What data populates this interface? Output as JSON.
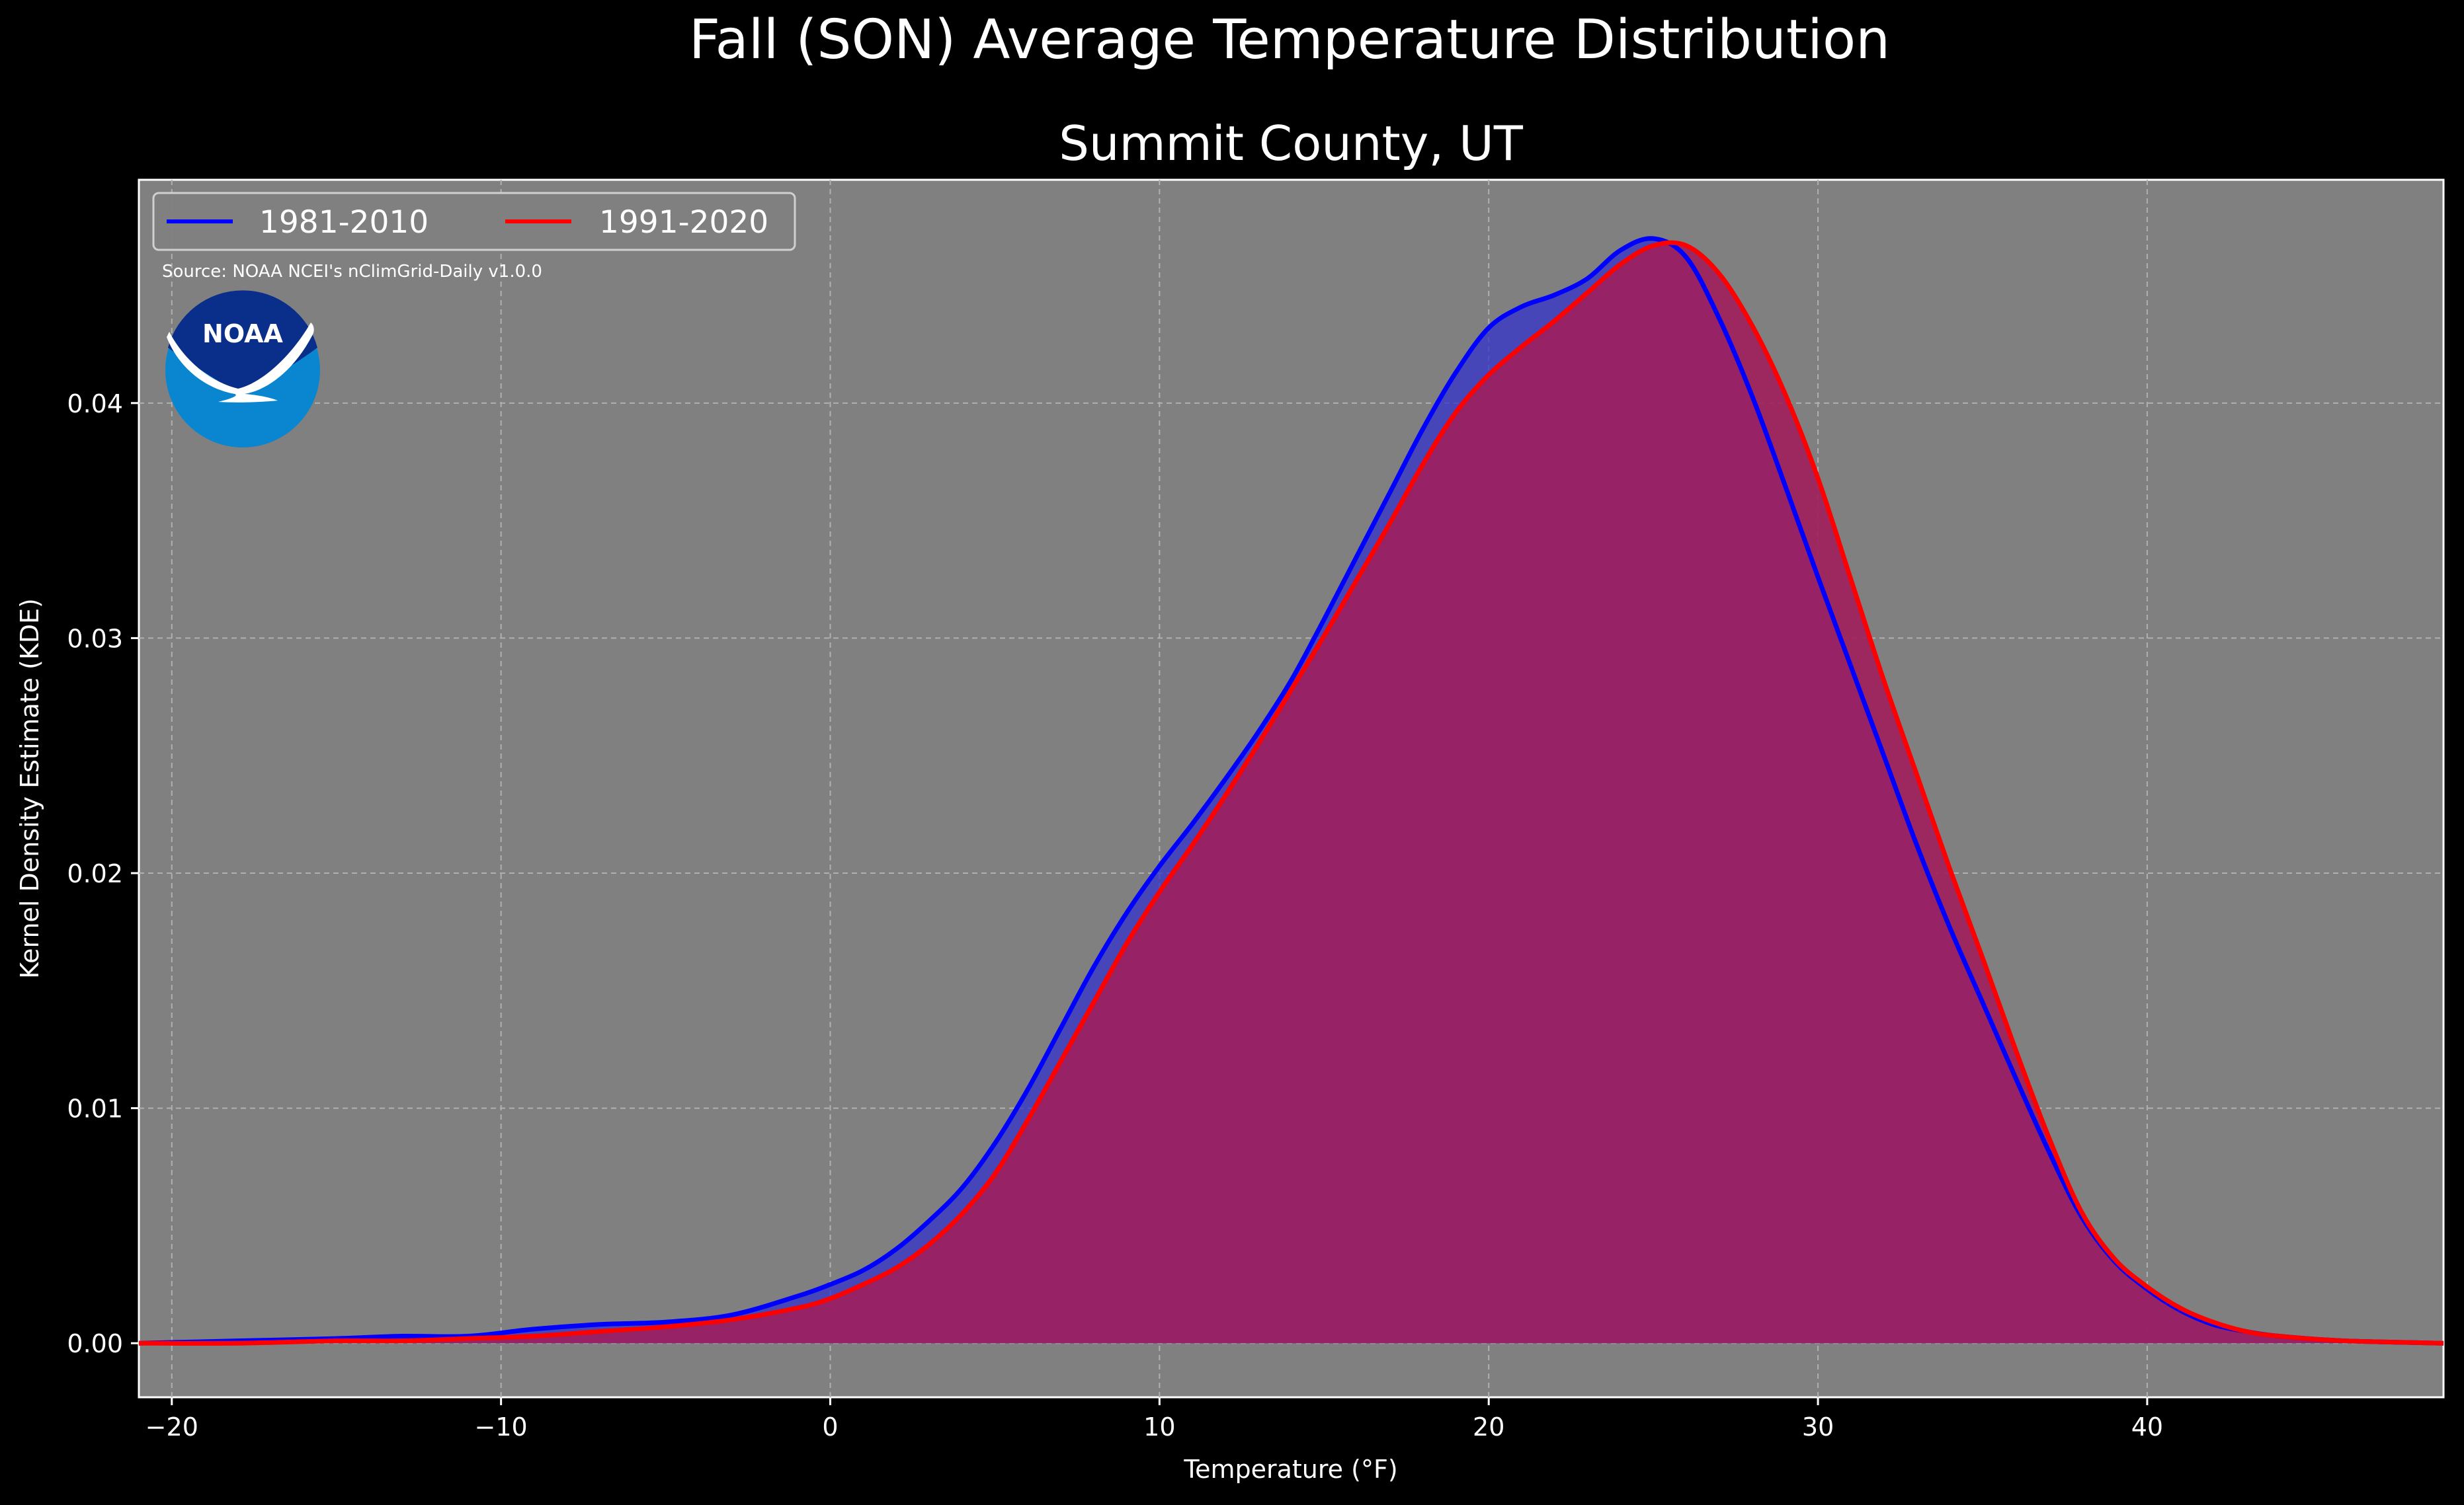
{
  "chart_data": {
    "type": "area",
    "title": "Fall (SON) Average Temperature Distribution",
    "subtitle": "Summit County, UT",
    "xlabel": "Temperature ($^\\circ$F)",
    "xlabel_display": "Temperature (°F)",
    "ylabel": "Kernel Density Estimate (KDE)",
    "xlim": [
      -21,
      49
    ],
    "ylim": [
      -0.0023,
      0.0495
    ],
    "x_ticks": [
      -20,
      -10,
      0,
      10,
      20,
      30,
      40
    ],
    "x_tick_labels": [
      "−20",
      "−10",
      "0",
      "10",
      "20",
      "30",
      "40"
    ],
    "y_ticks": [
      0,
      0.01,
      0.02,
      0.03,
      0.04
    ],
    "y_tick_labels": [
      "0.00",
      "0.01",
      "0.02",
      "0.03",
      "0.04"
    ],
    "grid": true,
    "legend_position": "top-left",
    "source": "Source: NOAA NCEI's nClimGrid-Daily v1.0.0",
    "logo_text": "NOAA",
    "colors": {
      "background": "#000000",
      "plot_background": "#808080",
      "series_1981": "#0000ff",
      "series_1991": "#ff0000",
      "fill_1981": "#3333cc",
      "fill_1991": "#a01e5c",
      "logo_dark": "#0a2f8a",
      "logo_light": "#0a86d0"
    },
    "series": [
      {
        "name": "1981-2010",
        "x": [
          -21,
          -18,
          -15,
          -13,
          -11,
          -9,
          -7,
          -5,
          -3,
          -1,
          0,
          1,
          2,
          3,
          4,
          5,
          6,
          7,
          8,
          9,
          10,
          11,
          12,
          13,
          14,
          15,
          16,
          17,
          18,
          19,
          20,
          21,
          22,
          23,
          24,
          25,
          26,
          27,
          28,
          29,
          30,
          31,
          32,
          33,
          34,
          35,
          36,
          37,
          38,
          39,
          40,
          41,
          42,
          43,
          44,
          46,
          49
        ],
        "y": [
          0,
          0.0001,
          0.0002,
          0.0003,
          0.0003,
          0.0006,
          0.0008,
          0.0009,
          0.0012,
          0.002,
          0.0025,
          0.0031,
          0.004,
          0.0052,
          0.0066,
          0.0085,
          0.0108,
          0.0134,
          0.016,
          0.0183,
          0.0203,
          0.0221,
          0.024,
          0.026,
          0.0282,
          0.0308,
          0.0335,
          0.0362,
          0.0389,
          0.0413,
          0.0432,
          0.0441,
          0.0446,
          0.0453,
          0.0465,
          0.047,
          0.0462,
          0.0436,
          0.0403,
          0.0365,
          0.0326,
          0.0288,
          0.025,
          0.0212,
          0.0177,
          0.0145,
          0.0113,
          0.0082,
          0.0054,
          0.0035,
          0.0023,
          0.0014,
          0.0008,
          0.0005,
          0.0003,
          0.0001,
          0
        ]
      },
      {
        "name": "1991-2020",
        "x": [
          -21,
          -18,
          -15,
          -13,
          -11,
          -9,
          -7,
          -5,
          -3,
          -1,
          0,
          1,
          2,
          3,
          4,
          5,
          6,
          7,
          8,
          9,
          10,
          11,
          12,
          13,
          14,
          15,
          16,
          17,
          18,
          19,
          20,
          21,
          22,
          23,
          24,
          25,
          26,
          27,
          28,
          29,
          30,
          31,
          32,
          33,
          34,
          35,
          36,
          37,
          38,
          39,
          40,
          41,
          42,
          43,
          44,
          46,
          49
        ],
        "y": [
          0,
          0,
          0.0001,
          0.0001,
          0.0002,
          0.0003,
          0.0005,
          0.0007,
          0.001,
          0.0015,
          0.0019,
          0.0025,
          0.0032,
          0.0042,
          0.0055,
          0.0072,
          0.0095,
          0.012,
          0.0145,
          0.017,
          0.0192,
          0.0212,
          0.0233,
          0.0255,
          0.0278,
          0.0301,
          0.0325,
          0.0349,
          0.0374,
          0.0396,
          0.0412,
          0.0424,
          0.0435,
          0.0447,
          0.0459,
          0.0467,
          0.0467,
          0.0455,
          0.0433,
          0.0404,
          0.0368,
          0.0325,
          0.0282,
          0.0242,
          0.0202,
          0.0164,
          0.0125,
          0.0088,
          0.0056,
          0.0036,
          0.0024,
          0.0015,
          0.0009,
          0.0005,
          0.0003,
          0.0001,
          0
        ]
      }
    ]
  }
}
